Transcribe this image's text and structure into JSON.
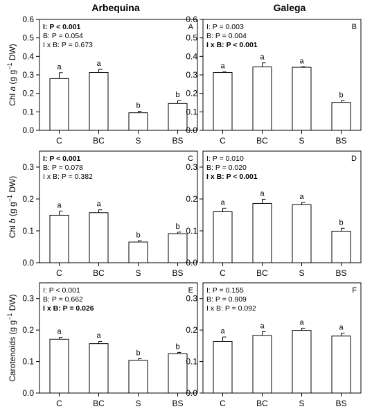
{
  "figure": {
    "column_titles": [
      "Arbequina",
      "Galega"
    ]
  },
  "chart_data": [
    {
      "panel": "A",
      "type": "bar",
      "cultivar": "Arbequina",
      "ylabel": "Chl a (g g⁻¹ DW)",
      "ylabel_parts": [
        "Chl ",
        "a",
        " (g g",
        "−1",
        " DW)"
      ],
      "ylim": [
        0,
        0.6
      ],
      "yticks": [
        "0.0",
        "0.1",
        "0.2",
        "0.3",
        "0.4",
        "0.5",
        "0.6"
      ],
      "categories": [
        "C",
        "BC",
        "S",
        "BS"
      ],
      "values": [
        0.28,
        0.313,
        0.095,
        0.145
      ],
      "errors": [
        0.032,
        0.017,
        0.008,
        0.016
      ],
      "letters": [
        "a",
        "a",
        "b",
        "b"
      ],
      "stats": [
        {
          "label": "I: ",
          "value": "P < 0.001",
          "bold": true
        },
        {
          "label": "B: ",
          "value": "P = 0.054",
          "bold": false
        },
        {
          "label": "I x B: ",
          "value": "P = 0.673",
          "bold": false
        }
      ]
    },
    {
      "panel": "B",
      "type": "bar",
      "cultivar": "Galega",
      "ylabel": "",
      "ylim": [
        0,
        0.6
      ],
      "yticks": [
        "0.0",
        "0.1",
        "0.2",
        "0.3",
        "0.4",
        "0.5",
        "0.6"
      ],
      "categories": [
        "C",
        "BC",
        "S",
        "BS"
      ],
      "values": [
        0.313,
        0.343,
        0.341,
        0.151
      ],
      "errors": [
        0.003,
        0.022,
        0.003,
        0.009
      ],
      "letters": [
        "a",
        "a",
        "a",
        "b"
      ],
      "stats": [
        {
          "label": "I: ",
          "value": "P = 0.003",
          "bold": false
        },
        {
          "label": "B: ",
          "value": "P = 0.004",
          "bold": false
        },
        {
          "label": "I x B: ",
          "value": "P < 0.001",
          "bold": true
        }
      ]
    },
    {
      "panel": "C",
      "type": "bar",
      "cultivar": "Arbequina",
      "ylabel": "Chl b (g g⁻¹ DW)",
      "ylabel_parts": [
        "Chl ",
        "b",
        " (g g",
        "−1",
        " DW)"
      ],
      "ylim": [
        0,
        0.35
      ],
      "yticks": [
        "0.0",
        "0.1",
        "0.2",
        "0.3"
      ],
      "categories": [
        "C",
        "BC",
        "S",
        "BS"
      ],
      "values": [
        0.149,
        0.157,
        0.065,
        0.091
      ],
      "errors": [
        0.013,
        0.009,
        0.004,
        0.005
      ],
      "letters": [
        "a",
        "a",
        "b",
        "b"
      ],
      "stats": [
        {
          "label": "I: ",
          "value": "P < 0.001",
          "bold": true
        },
        {
          "label": "B: ",
          "value": "P = 0.078",
          "bold": false
        },
        {
          "label": "I x B: ",
          "value": "P = 0.382",
          "bold": false
        }
      ]
    },
    {
      "panel": "D",
      "type": "bar",
      "cultivar": "Galega",
      "ylabel": "",
      "ylim": [
        0,
        0.35
      ],
      "yticks": [
        "0.0",
        "0.1",
        "0.2",
        "0.3"
      ],
      "categories": [
        "C",
        "BC",
        "S",
        "BS"
      ],
      "values": [
        0.16,
        0.186,
        0.182,
        0.099
      ],
      "errors": [
        0.011,
        0.013,
        0.007,
        0.009
      ],
      "letters": [
        "a",
        "a",
        "a",
        "b"
      ],
      "stats": [
        {
          "label": "I: ",
          "value": "P = 0.010",
          "bold": false
        },
        {
          "label": "B: ",
          "value": "P = 0.020",
          "bold": false
        },
        {
          "label": "I x B: ",
          "value": "P < 0.001",
          "bold": true
        }
      ]
    },
    {
      "panel": "E",
      "type": "bar",
      "cultivar": "Arbequina",
      "ylabel": "Carotenoids (g g⁻¹ DW)",
      "ylabel_parts": [
        "Carotenoids (g g",
        "−1",
        " DW)"
      ],
      "ylim": [
        0,
        0.35
      ],
      "yticks": [
        "0.0",
        "0.1",
        "0.2",
        "0.3"
      ],
      "categories": [
        "C",
        "BC",
        "S",
        "BS"
      ],
      "values": [
        0.171,
        0.157,
        0.104,
        0.125
      ],
      "errors": [
        0.006,
        0.007,
        0.005,
        0.004
      ],
      "letters": [
        "a",
        "a",
        "b",
        "b"
      ],
      "stats": [
        {
          "label": "I: ",
          "value": "P < 0.001",
          "bold": false
        },
        {
          "label": "B: ",
          "value": "P = 0.662",
          "bold": false
        },
        {
          "label": "I x B: ",
          "value": "P = 0.026",
          "bold": true
        }
      ]
    },
    {
      "panel": "F",
      "type": "bar",
      "cultivar": "Galega",
      "ylabel": "",
      "ylim": [
        0,
        0.35
      ],
      "yticks": [
        "0.0",
        "0.1",
        "0.2",
        "0.3"
      ],
      "categories": [
        "C",
        "BC",
        "S",
        "BS"
      ],
      "values": [
        0.164,
        0.183,
        0.199,
        0.181
      ],
      "errors": [
        0.014,
        0.012,
        0.007,
        0.009
      ],
      "letters": [
        "a",
        "a",
        "a",
        "a"
      ],
      "stats": [
        {
          "label": "I: ",
          "value": "P = 0.155",
          "bold": false
        },
        {
          "label": "B: ",
          "value": "P = 0.909",
          "bold": false
        },
        {
          "label": "I x B: ",
          "value": "P = 0.092",
          "bold": false
        }
      ]
    }
  ]
}
